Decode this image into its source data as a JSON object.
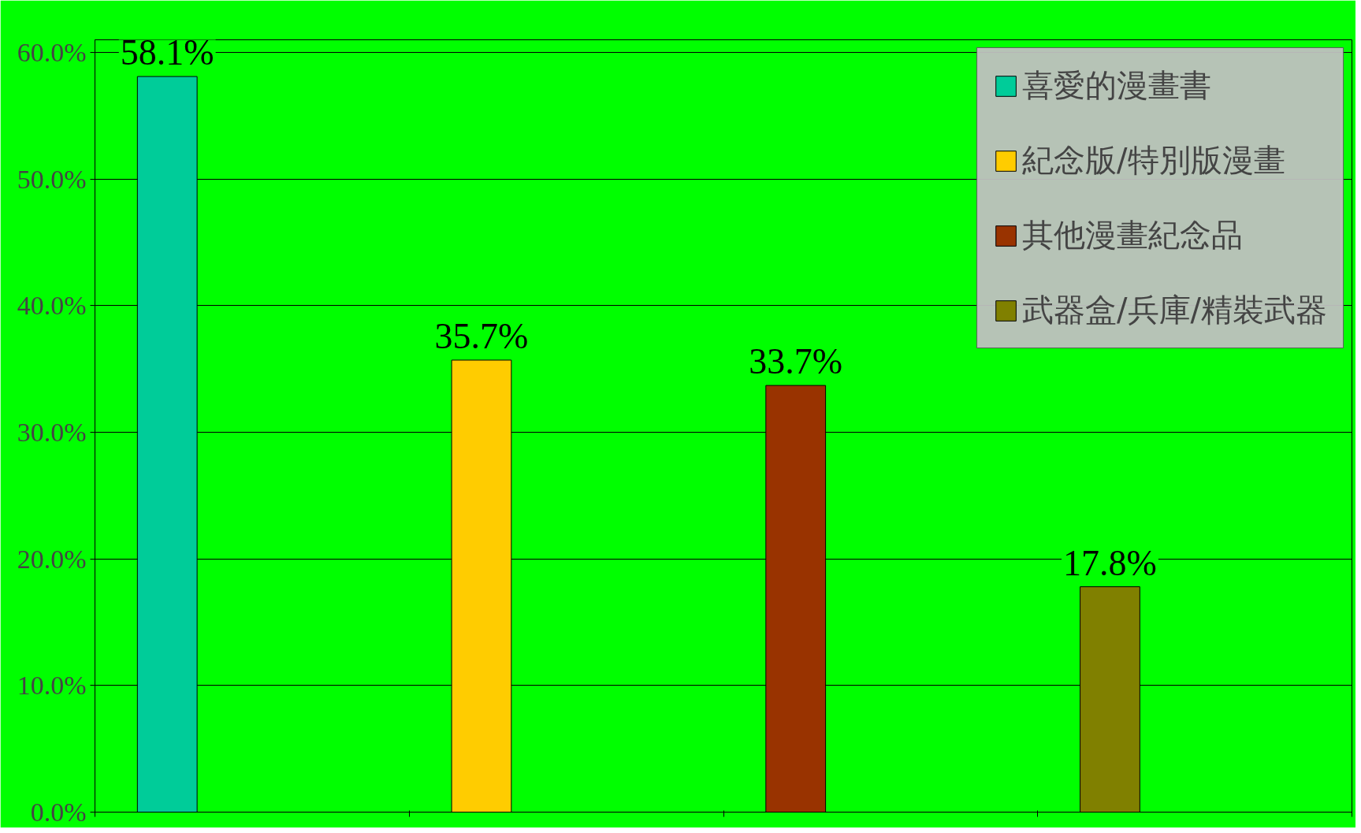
{
  "chart_data": {
    "type": "bar",
    "categories": [
      null,
      null,
      null,
      null
    ],
    "series": [
      {
        "name": "喜愛的漫畫書",
        "color": "#00cc99",
        "values": [
          58.1,
          null,
          null,
          null
        ],
        "value_labels": [
          "58.1%",
          null,
          null,
          null
        ]
      },
      {
        "name": "紀念版/特別版漫畫",
        "color": "#ffcc00",
        "values": [
          null,
          35.7,
          null,
          null
        ],
        "value_labels": [
          null,
          "35.7%",
          null,
          null
        ]
      },
      {
        "name": "其他漫畫紀念品",
        "color": "#993300",
        "values": [
          null,
          null,
          33.7,
          null
        ],
        "value_labels": [
          null,
          null,
          "33.7%",
          null
        ]
      },
      {
        "name": "武器盒/兵庫/精裝武器",
        "color": "#808000",
        "values": [
          null,
          null,
          null,
          17.8
        ],
        "value_labels": [
          null,
          null,
          null,
          "17.8%"
        ]
      }
    ],
    "ylim": [
      0,
      61
    ],
    "yticks": [
      {
        "value": 0,
        "label": "0.0%"
      },
      {
        "value": 10,
        "label": "10.0%"
      },
      {
        "value": 20,
        "label": "20.0%"
      },
      {
        "value": 30,
        "label": "30.0%"
      },
      {
        "value": 40,
        "label": "40.0%"
      },
      {
        "value": 50,
        "label": "50.0%"
      },
      {
        "value": 60,
        "label": "60.0%"
      }
    ],
    "grid": "y",
    "legend": "top right",
    "tick_labels": "y"
  }
}
